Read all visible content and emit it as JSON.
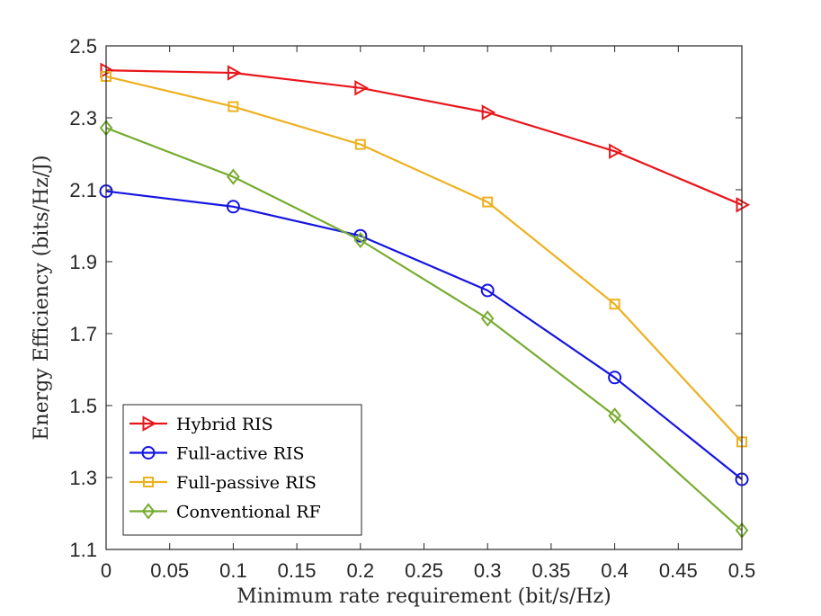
{
  "chart_data": {
    "type": "line",
    "title": "",
    "xlabel": "Minimum rate requirement (bit/s/Hz)",
    "ylabel": "Energy Efficiency (bits/Hz/J)",
    "xlim": [
      0,
      0.5
    ],
    "ylim": [
      1.1,
      2.5
    ],
    "xticks": [
      0,
      0.05,
      0.1,
      0.15,
      0.2,
      0.25,
      0.3,
      0.35,
      0.4,
      0.45,
      0.5
    ],
    "xtick_labels": [
      "0",
      "0.05",
      "0.1",
      "0.15",
      "0.2",
      "0.25",
      "0.3",
      "0.35",
      "0.4",
      "0.45",
      "0.5"
    ],
    "yticks": [
      1.1,
      1.3,
      1.5,
      1.7,
      1.9,
      2.1,
      2.3,
      2.5
    ],
    "ytick_labels": [
      "1.1",
      "1.3",
      "1.5",
      "1.7",
      "1.9",
      "2.1",
      "2.3",
      "2.5"
    ],
    "grid": false,
    "legend_position": "bottom-left",
    "x": [
      0,
      0.1,
      0.2,
      0.3,
      0.4,
      0.5
    ],
    "series": [
      {
        "name": "Hybrid RIS",
        "color": "#e8161b",
        "marker": "triangle-right",
        "values": [
          2.432,
          2.425,
          2.383,
          2.315,
          2.207,
          2.058
        ]
      },
      {
        "name": "Full-active RIS",
        "color": "#1515e0",
        "marker": "circle",
        "values": [
          2.096,
          2.053,
          1.972,
          1.82,
          1.578,
          1.295
        ]
      },
      {
        "name": "Full-passive RIS",
        "color": "#edb120",
        "marker": "square",
        "values": [
          2.415,
          2.331,
          2.226,
          2.066,
          1.782,
          1.399
        ]
      },
      {
        "name": "Conventional RF",
        "color": "#77ac30",
        "marker": "diamond",
        "values": [
          2.272,
          2.136,
          1.96,
          1.742,
          1.472,
          1.153
        ]
      }
    ]
  }
}
